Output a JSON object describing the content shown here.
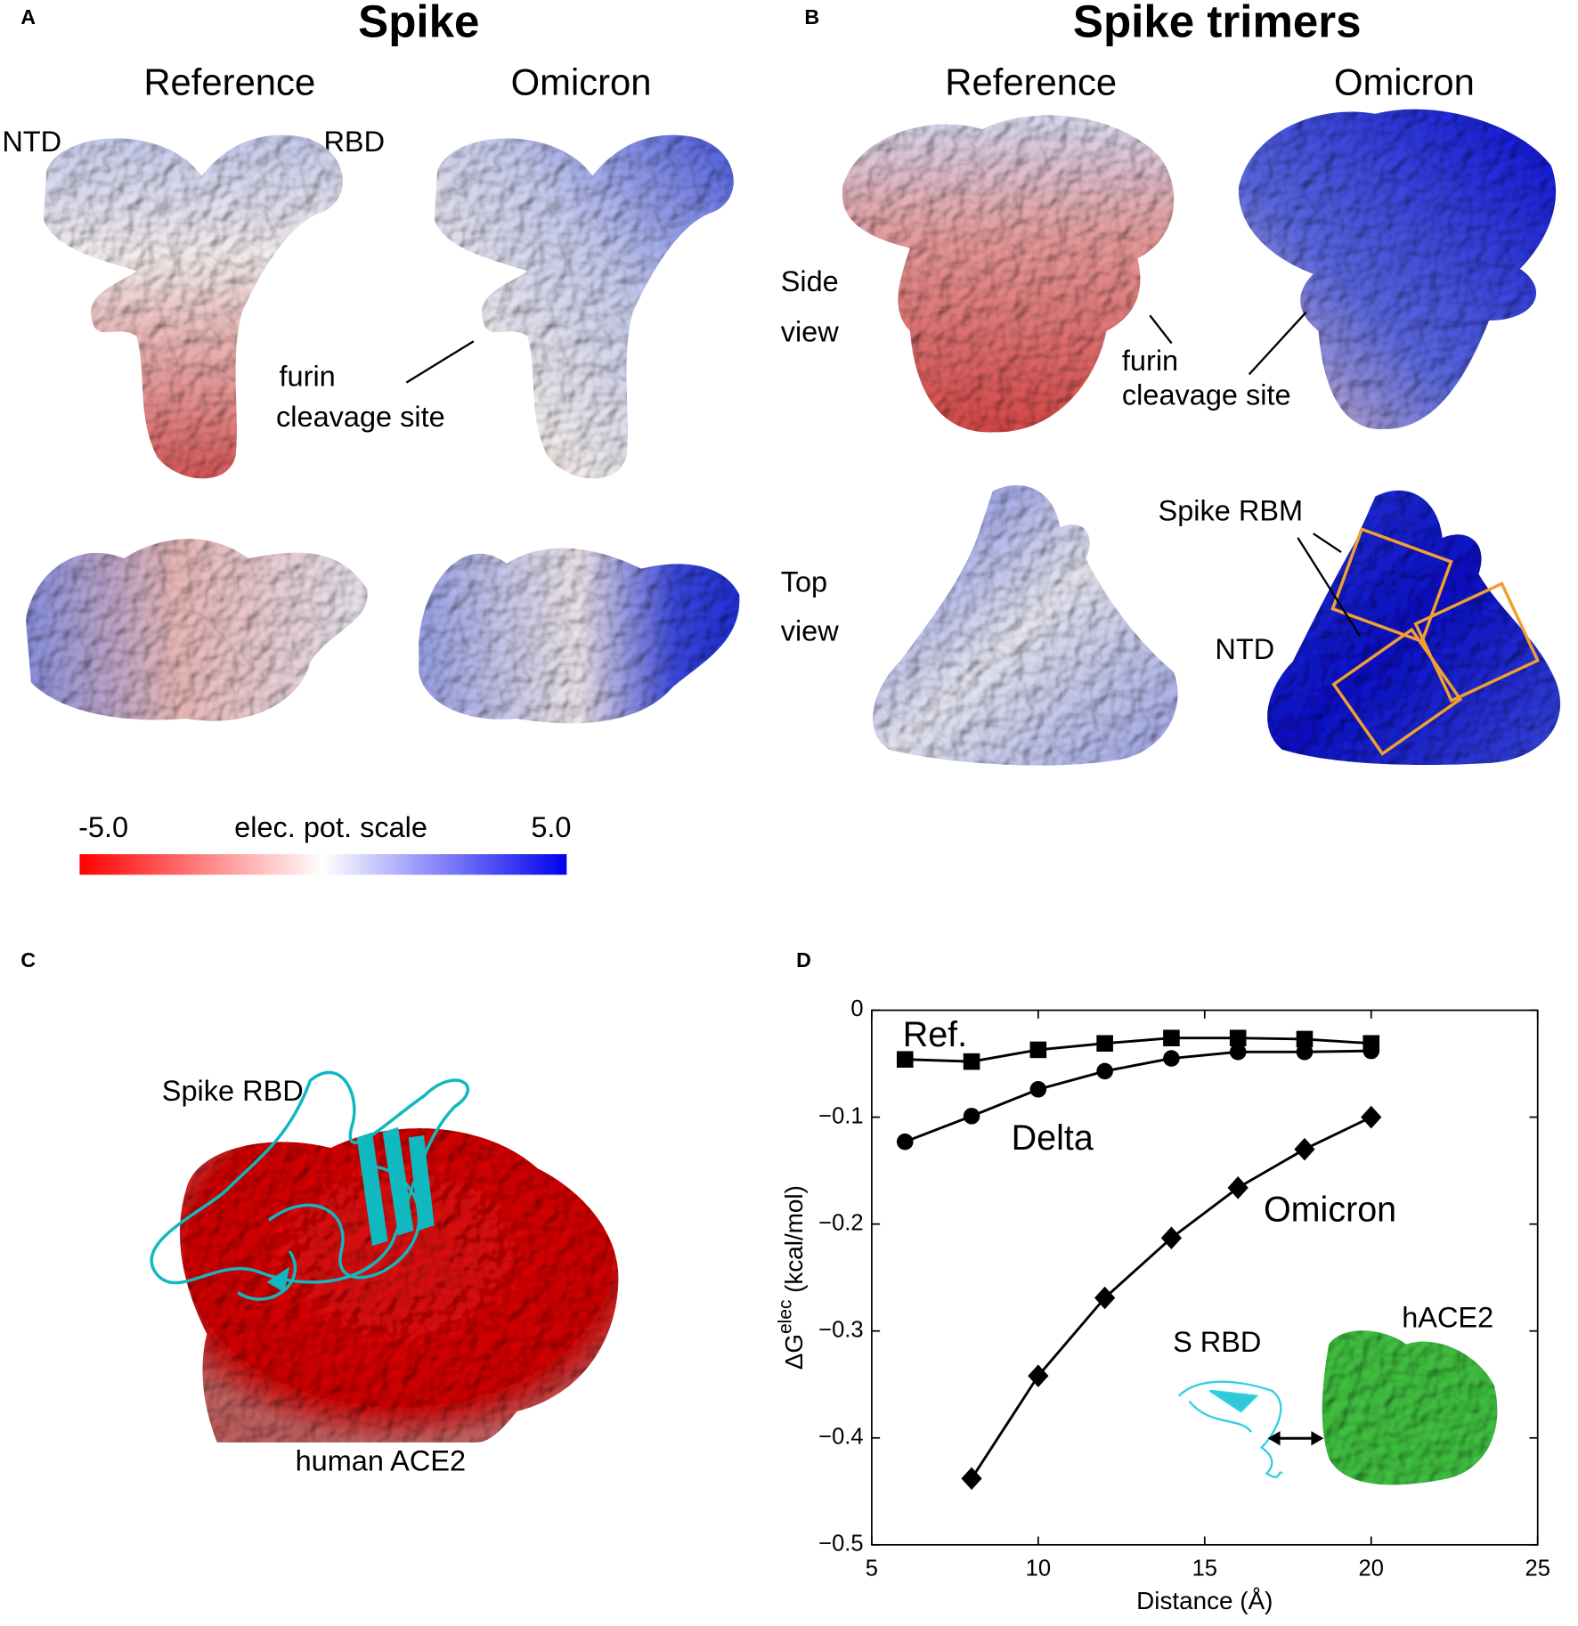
{
  "panels": {
    "a": {
      "label": "A",
      "title": "Spike",
      "col1": "Reference",
      "col2": "Omicron",
      "ntd": "NTD",
      "rbd": "RBD",
      "furin": [
        "furin",
        "cleavage site"
      ],
      "colorbar": {
        "min": "-5.0",
        "title": "elec. pot. scale",
        "max": "5.0"
      }
    },
    "b": {
      "label": "B",
      "title": "Spike trimers",
      "col1": "Reference",
      "col2": "Omicron",
      "side": [
        "Side",
        "view"
      ],
      "top": [
        "Top",
        "view"
      ],
      "furin": [
        "furin",
        "cleavage site"
      ],
      "rbm": "Spike RBM",
      "ntd": "NTD"
    },
    "c": {
      "label": "C",
      "rbd": "Spike RBD",
      "ace2": "human ACE2"
    },
    "d": {
      "label": "D",
      "inset_rbd": "S RBD",
      "inset_ace2": "hACE2"
    }
  },
  "chart_data": {
    "type": "line",
    "xlabel": "Distance (Å)",
    "ylabel": [
      "ΔG",
      "elec",
      " (kcal/mol)"
    ],
    "x": [
      6,
      8,
      10,
      12,
      14,
      16,
      18,
      20
    ],
    "series": [
      {
        "name": "Ref.",
        "color": "#000000",
        "marker": "square",
        "values": [
          -0.046,
          -0.048,
          -0.037,
          -0.031,
          -0.026,
          -0.026,
          -0.027,
          -0.031
        ]
      },
      {
        "name": "Delta",
        "color": "#000000",
        "marker": "circle",
        "values": [
          -0.123,
          -0.099,
          -0.074,
          -0.057,
          -0.045,
          -0.039,
          -0.039,
          -0.038
        ]
      },
      {
        "name": "Omicron",
        "color": "#000000",
        "marker": "diamond",
        "values": [
          null,
          -0.438,
          -0.342,
          -0.269,
          -0.213,
          -0.166,
          -0.13,
          -0.1
        ]
      }
    ],
    "xlim": [
      5,
      25
    ],
    "xticks": [
      5,
      10,
      15,
      20,
      25
    ],
    "ylim": [
      -0.5,
      0
    ],
    "yticks": [
      {
        "value": -0.5,
        "label": "−0.5"
      },
      {
        "value": -0.4,
        "label": "−0.4"
      },
      {
        "value": -0.3,
        "label": "−0.3"
      },
      {
        "value": -0.2,
        "label": "−0.2"
      },
      {
        "value": -0.1,
        "label": "−0.1"
      },
      0
    ]
  }
}
